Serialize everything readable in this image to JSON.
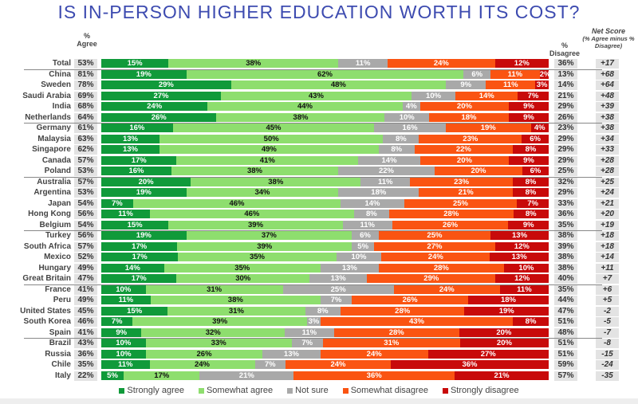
{
  "chart_data": {
    "type": "bar",
    "orientation": "horizontal-stacked",
    "title": "IS IN-PERSON HIGHER EDUCATION WORTH ITS COST?",
    "headers": {
      "agree": "% Agree",
      "agree_pct": "%",
      "agree_word": "Agree",
      "disagree_pct": "%",
      "disagree_word": "Disagree",
      "net": "Net Score",
      "net_sub": "(% Agree minus % Disagree)"
    },
    "series": [
      {
        "name": "Strongly agree",
        "color": "#109a3a"
      },
      {
        "name": "Somewhat agree",
        "color": "#8ede6e"
      },
      {
        "name": "Not sure",
        "color": "#a9a9a9"
      },
      {
        "name": "Somewhat disagree",
        "color": "#fa5412"
      },
      {
        "name": "Strongly disagree",
        "color": "#c80a0a"
      }
    ],
    "rows": [
      {
        "country": "Total",
        "agree": "53%",
        "values": [
          15,
          38,
          11,
          24,
          12
        ],
        "disagree": "36%",
        "net": "+17",
        "sep": true
      },
      {
        "country": "China",
        "agree": "81%",
        "values": [
          19,
          62,
          6,
          11,
          2
        ],
        "disagree": "13%",
        "net": "+68"
      },
      {
        "country": "Sweden",
        "agree": "78%",
        "values": [
          29,
          48,
          9,
          11,
          3
        ],
        "disagree": "14%",
        "net": "+64"
      },
      {
        "country": "Saudi Arabia",
        "agree": "69%",
        "values": [
          27,
          43,
          10,
          14,
          7
        ],
        "disagree": "21%",
        "net": "+48"
      },
      {
        "country": "India",
        "agree": "68%",
        "values": [
          24,
          44,
          4,
          20,
          9
        ],
        "disagree": "29%",
        "net": "+39"
      },
      {
        "country": "Netherlands",
        "agree": "64%",
        "values": [
          26,
          38,
          10,
          18,
          9
        ],
        "disagree": "26%",
        "net": "+38",
        "sep": true
      },
      {
        "country": "Germany",
        "agree": "61%",
        "values": [
          16,
          45,
          16,
          19,
          4
        ],
        "disagree": "23%",
        "net": "+38"
      },
      {
        "country": "Malaysia",
        "agree": "63%",
        "values": [
          13,
          50,
          8,
          23,
          6
        ],
        "disagree": "29%",
        "net": "+34"
      },
      {
        "country": "Singapore",
        "agree": "62%",
        "values": [
          13,
          49,
          8,
          22,
          8
        ],
        "disagree": "29%",
        "net": "+33"
      },
      {
        "country": "Canada",
        "agree": "57%",
        "values": [
          17,
          41,
          14,
          20,
          9
        ],
        "disagree": "29%",
        "net": "+28"
      },
      {
        "country": "Poland",
        "agree": "53%",
        "values": [
          16,
          38,
          22,
          20,
          6
        ],
        "disagree": "25%",
        "net": "+28",
        "sep": true
      },
      {
        "country": "Australia",
        "agree": "57%",
        "values": [
          20,
          38,
          11,
          23,
          8
        ],
        "disagree": "32%",
        "net": "+25"
      },
      {
        "country": "Argentina",
        "agree": "53%",
        "values": [
          19,
          34,
          18,
          21,
          8
        ],
        "disagree": "29%",
        "net": "+24"
      },
      {
        "country": "Japan",
        "agree": "54%",
        "values": [
          7,
          46,
          14,
          25,
          7
        ],
        "disagree": "33%",
        "net": "+21"
      },
      {
        "country": "Hong Kong",
        "agree": "56%",
        "values": [
          11,
          46,
          8,
          28,
          8
        ],
        "disagree": "36%",
        "net": "+20"
      },
      {
        "country": "Belgium",
        "agree": "54%",
        "values": [
          15,
          39,
          11,
          26,
          9
        ],
        "disagree": "35%",
        "net": "+19",
        "sep": true
      },
      {
        "country": "Turkey",
        "agree": "56%",
        "values": [
          19,
          37,
          6,
          25,
          13
        ],
        "disagree": "38%",
        "net": "+18"
      },
      {
        "country": "South Africa",
        "agree": "57%",
        "values": [
          17,
          39,
          5,
          27,
          12
        ],
        "disagree": "39%",
        "net": "+18"
      },
      {
        "country": "Mexico",
        "agree": "52%",
        "values": [
          17,
          35,
          10,
          24,
          13
        ],
        "disagree": "38%",
        "net": "+14"
      },
      {
        "country": "Hungary",
        "agree": "49%",
        "values": [
          14,
          35,
          13,
          28,
          10
        ],
        "disagree": "38%",
        "net": "+11"
      },
      {
        "country": "Great Britain",
        "agree": "47%",
        "values": [
          17,
          30,
          13,
          29,
          12
        ],
        "disagree": "40%",
        "net": "+7",
        "sep": true
      },
      {
        "country": "France",
        "agree": "41%",
        "values": [
          10,
          31,
          25,
          24,
          11
        ],
        "disagree": "35%",
        "net": "+6"
      },
      {
        "country": "Peru",
        "agree": "49%",
        "values": [
          11,
          38,
          7,
          26,
          18
        ],
        "disagree": "44%",
        "net": "+5"
      },
      {
        "country": "United States",
        "agree": "45%",
        "values": [
          15,
          31,
          8,
          28,
          19
        ],
        "disagree": "47%",
        "net": "-2"
      },
      {
        "country": "South Korea",
        "agree": "46%",
        "values": [
          7,
          39,
          3,
          43,
          8
        ],
        "disagree": "51%",
        "net": "-5"
      },
      {
        "country": "Spain",
        "agree": "41%",
        "values": [
          9,
          32,
          11,
          28,
          20
        ],
        "disagree": "48%",
        "net": "-7",
        "sep": true
      },
      {
        "country": "Brazil",
        "agree": "43%",
        "values": [
          10,
          33,
          7,
          31,
          20
        ],
        "disagree": "51%",
        "net": "-8"
      },
      {
        "country": "Russia",
        "agree": "36%",
        "values": [
          10,
          26,
          13,
          24,
          27
        ],
        "disagree": "51%",
        "net": "-15"
      },
      {
        "country": "Chile",
        "agree": "35%",
        "values": [
          11,
          24,
          7,
          24,
          36
        ],
        "disagree": "59%",
        "net": "-24"
      },
      {
        "country": "Italy",
        "agree": "22%",
        "values": [
          5,
          17,
          21,
          36,
          21
        ],
        "disagree": "57%",
        "net": "-35"
      }
    ],
    "legend_position": "bottom"
  }
}
